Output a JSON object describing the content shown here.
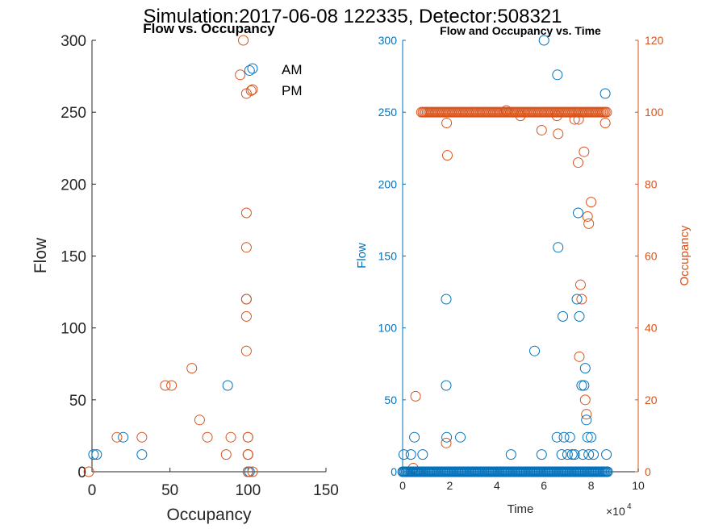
{
  "figure": {
    "title": "Simulation:2017-06-08 122335, Detector:508321"
  },
  "colors": {
    "am": "#0072BD",
    "pm": "#D95319",
    "axis": "#262626",
    "background": "#ffffff"
  },
  "chart_data": [
    {
      "type": "scatter",
      "title": "Flow vs. Occupancy",
      "xlabel": "Occupancy",
      "ylabel": "Flow",
      "xlim": [
        0,
        150
      ],
      "ylim": [
        0,
        300
      ],
      "xticks": [
        0,
        50,
        100,
        150
      ],
      "yticks": [
        0,
        50,
        100,
        150,
        200,
        250,
        300
      ],
      "grid": false,
      "legend_position": "top-right",
      "series": [
        {
          "name": "AM",
          "color": "#0072BD",
          "x": [
            1,
            3,
            20,
            32,
            87,
            99,
            100,
            101,
            101,
            100
          ],
          "y": [
            12,
            12,
            24,
            12,
            60,
            120,
            0,
            0,
            279,
            0
          ]
        },
        {
          "name": "PM",
          "color": "#D95319",
          "x": [
            -2,
            16,
            32,
            47,
            51,
            64,
            69,
            74,
            86,
            89,
            95,
            97,
            99,
            99,
            99,
            99,
            99,
            100,
            100,
            100,
            100,
            100,
            100,
            102,
            103,
            99
          ],
          "y": [
            0,
            24,
            24,
            60,
            60,
            72,
            36,
            24,
            12,
            24,
            276,
            300,
            263,
            156,
            108,
            84,
            120,
            12,
            24,
            12,
            24,
            12,
            0,
            265,
            0,
            180
          ]
        }
      ]
    },
    {
      "type": "scatter",
      "title": "Flow and Occupancy vs. Time",
      "xlabel": "Time",
      "x_exponent": "×10^4",
      "x_exponent_base": "×10",
      "x_exponent_power": "4",
      "ylabel_left": "Flow",
      "ylabel_right": "Occupancy",
      "xlim": [
        0,
        10
      ],
      "ylim_left": [
        0,
        300
      ],
      "ylim_right": [
        0,
        120
      ],
      "xticks": [
        0,
        2,
        4,
        6,
        8,
        10
      ],
      "yticks_left": [
        0,
        50,
        100,
        150,
        200,
        250,
        300
      ],
      "yticks_right": [
        0,
        20,
        40,
        60,
        80,
        100,
        120
      ],
      "grid": false,
      "series": [
        {
          "name": "Flow",
          "axis": "left",
          "color": "#0072BD",
          "x": [
            0,
            0.3,
            0.6,
            1.0,
            1.5,
            2.0,
            2.5,
            3.0,
            3.5,
            4.0,
            4.5,
            5.0,
            5.5,
            6.0,
            6.5,
            7.0,
            7.5,
            8.0,
            8.5,
            8.7,
            0.05,
            0.35,
            0.5,
            0.85,
            1.85,
            1.85,
            1.87,
            2.45,
            4.6,
            5.6,
            5.9,
            6.0,
            6.55,
            6.57,
            6.6,
            6.75,
            6.8,
            6.85,
            7.0,
            7.1,
            7.2,
            7.3,
            7.4,
            7.45,
            7.5,
            7.6,
            7.65,
            7.7,
            7.75,
            7.8,
            7.85,
            7.9,
            8.0,
            8.1,
            8.6,
            8.65
          ],
          "y": [
            0,
            0,
            0,
            0,
            0,
            0,
            0,
            0,
            0,
            0,
            0,
            0,
            0,
            0,
            0,
            0,
            0,
            0,
            0,
            0,
            12,
            12,
            24,
            12,
            120,
            60,
            24,
            24,
            12,
            84,
            12,
            300,
            24,
            276,
            156,
            12,
            108,
            24,
            12,
            24,
            12,
            12,
            120,
            180,
            108,
            60,
            12,
            60,
            72,
            36,
            24,
            12,
            24,
            12,
            263,
            12
          ]
        },
        {
          "name": "Occupancy",
          "axis": "right",
          "color": "#D95319",
          "x": [
            0.8,
            1.5,
            2.5,
            3.5,
            4.4,
            5.5,
            6.5,
            7.5,
            8.2,
            8.6,
            0.05,
            0.2,
            0.35,
            0.45,
            0.55,
            0.62,
            1.1,
            1.15,
            1.85,
            1.87,
            1.9,
            2.3,
            5.0,
            5.9,
            6.0,
            6.55,
            6.6,
            6.7,
            7.3,
            7.45,
            7.47,
            7.5,
            7.55,
            7.6,
            7.7,
            7.75,
            7.8,
            7.85,
            7.9,
            8.0,
            8.6,
            8.7,
            0.55,
            1.85,
            5.5,
            6.7
          ],
          "y": [
            100,
            100,
            100,
            100,
            100.5,
            100,
            100,
            100,
            100,
            100,
            0,
            0,
            0,
            1,
            0,
            0,
            0,
            0,
            100,
            97,
            88,
            100,
            99,
            95,
            100,
            99,
            94,
            100,
            98,
            86,
            98,
            32,
            52,
            48,
            89,
            20,
            16,
            71,
            69,
            75,
            97,
            100,
            21,
            8,
            100,
            100
          ]
        }
      ]
    }
  ]
}
